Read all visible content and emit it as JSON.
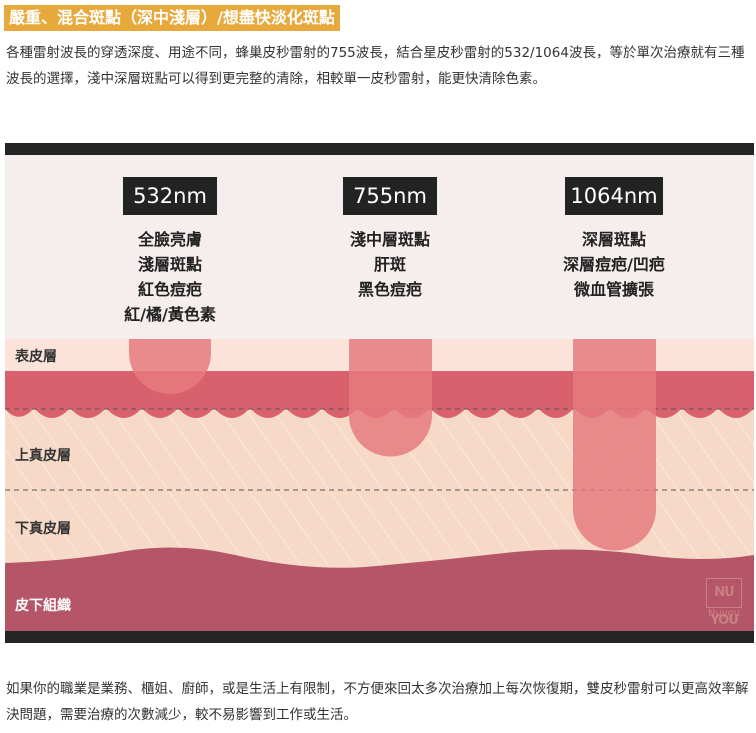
{
  "heading": "嚴重、混合斑點（深中淺層）/想盡快淡化斑點",
  "paragraph_top": "各種雷射波長的穿透深度、用途不同，蜂巢皮秒雷射的755波長，結合星皮秒雷射的532/1064波長，等於單次治療就有三種波長的選擇，淺中深層斑點可以得到更完整的清除，相較單一皮秒雷射，能更快清除色素。",
  "diagram": {
    "wavelengths": [
      {
        "label": "532nm",
        "uses": [
          "全臉亮膚",
          "淺層斑點",
          "紅色痘疤",
          "紅/橘/黃色素"
        ]
      },
      {
        "label": "755nm",
        "uses": [
          "淺中層斑點",
          "肝斑",
          "黑色痘疤"
        ]
      },
      {
        "label": "1064nm",
        "uses": [
          "深層斑點",
          "深層痘疤/凹疤",
          "微血管擴張"
        ]
      }
    ],
    "layers": [
      "表皮層",
      "上真皮層",
      "下真皮層",
      "皮下組織"
    ],
    "logo": {
      "mark": "NU YOU",
      "text": "Nuyou"
    },
    "colors": {
      "epidermis": "#fbe3da",
      "basal": "#d9616e",
      "dermis": "#f7d9c8",
      "subcutis": "#b55568",
      "beam": "#e57a7f"
    }
  },
  "paragraph_bottom": "如果你的職業是業務、櫃姐、廚師，或是生活上有限制，不方便來回太多次治療加上每次恢復期，雙皮秒雷射可以更高效率解決問題，需要治療的次數減少，較不易影響到工作或生活。"
}
